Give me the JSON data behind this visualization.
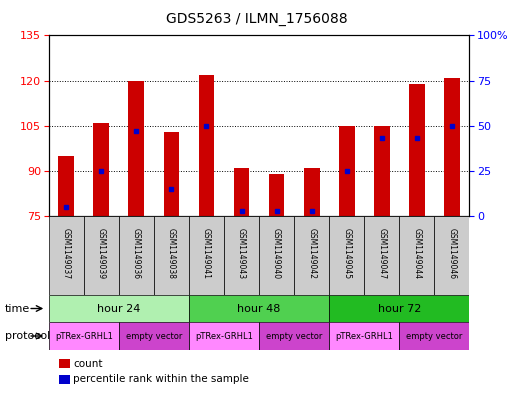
{
  "title": "GDS5263 / ILMN_1756088",
  "samples": [
    "GSM1149037",
    "GSM1149039",
    "GSM1149036",
    "GSM1149038",
    "GSM1149041",
    "GSM1149043",
    "GSM1149040",
    "GSM1149042",
    "GSM1149045",
    "GSM1149047",
    "GSM1149044",
    "GSM1149046"
  ],
  "counts": [
    95,
    106,
    120,
    103,
    122,
    91,
    89,
    91,
    105,
    105,
    119,
    121
  ],
  "percentile_ranks": [
    5,
    25,
    47,
    15,
    50,
    3,
    3,
    3,
    25,
    43,
    43,
    50
  ],
  "ylim_left": [
    75,
    135
  ],
  "ylim_right": [
    0,
    100
  ],
  "yticks_left": [
    75,
    90,
    105,
    120,
    135
  ],
  "yticks_right": [
    0,
    25,
    50,
    75,
    100
  ],
  "time_groups": [
    {
      "label": "hour 24",
      "start": 0,
      "end": 4,
      "color": "#b0f0b0"
    },
    {
      "label": "hour 48",
      "start": 4,
      "end": 8,
      "color": "#50d050"
    },
    {
      "label": "hour 72",
      "start": 8,
      "end": 12,
      "color": "#22bb22"
    }
  ],
  "protocol_groups": [
    {
      "label": "pTRex-GRHL1",
      "start": 0,
      "end": 2,
      "color": "#ff88ff"
    },
    {
      "label": "empty vector",
      "start": 2,
      "end": 4,
      "color": "#cc44cc"
    },
    {
      "label": "pTRex-GRHL1",
      "start": 4,
      "end": 6,
      "color": "#ff88ff"
    },
    {
      "label": "empty vector",
      "start": 6,
      "end": 8,
      "color": "#cc44cc"
    },
    {
      "label": "pTRex-GRHL1",
      "start": 8,
      "end": 10,
      "color": "#ff88ff"
    },
    {
      "label": "empty vector",
      "start": 10,
      "end": 12,
      "color": "#cc44cc"
    }
  ],
  "bar_color": "#cc0000",
  "percentile_color": "#0000cc",
  "bar_width": 0.45,
  "sample_box_color": "#cccccc",
  "fig_bg": "#ffffff",
  "legend_items": [
    {
      "label": "count",
      "color": "#cc0000"
    },
    {
      "label": "percentile rank within the sample",
      "color": "#0000cc"
    }
  ]
}
